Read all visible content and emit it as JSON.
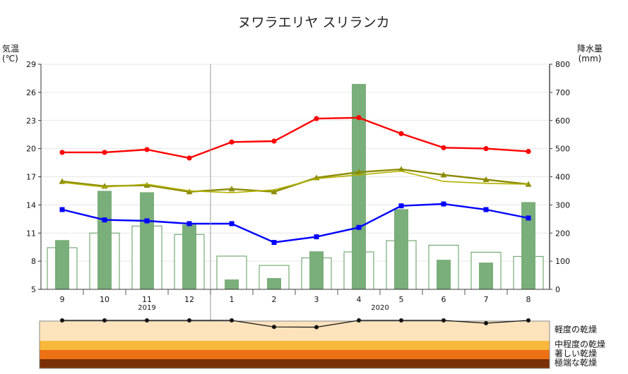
{
  "chart_data": {
    "type": "line",
    "title": "ヌワラエリヤ スリランカ",
    "left_axis": {
      "label_line1": "気温",
      "label_line2": "(℃)",
      "ticks": [
        5,
        8,
        11,
        14,
        17,
        20,
        23,
        26,
        29
      ],
      "range": [
        5,
        29
      ]
    },
    "right_axis": {
      "label_line1": "降水量",
      "label_line2": "(mm)",
      "ticks": [
        0,
        100,
        200,
        300,
        400,
        500,
        600,
        700,
        800
      ],
      "range": [
        0,
        800
      ]
    },
    "categories": [
      "9",
      "10",
      "11",
      "12",
      "1",
      "2",
      "3",
      "4",
      "5",
      "6",
      "7",
      "8"
    ],
    "year_labels": [
      {
        "text": "2019",
        "at": 2.5
      },
      {
        "text": "2020",
        "at": 8
      }
    ],
    "series": [
      {
        "values": [
          19.6,
          19.6,
          19.9,
          19.0,
          20.7,
          20.8,
          23.2,
          23.3,
          21.6,
          20.1,
          20.0,
          19.7
        ],
        "color": "#ff0000",
        "marker": "circle"
      },
      {
        "values": [
          16.5,
          16.0,
          16.1,
          15.4,
          15.7,
          15.4,
          16.9,
          17.5,
          17.8,
          17.2,
          16.7,
          16.2
        ],
        "color": "#8b8b00",
        "marker": "triangle"
      },
      {
        "values": [
          16.4,
          15.9,
          16.2,
          15.5,
          15.3,
          15.6,
          16.8,
          17.2,
          17.6,
          16.5,
          16.3,
          16.2
        ],
        "color": "#b0b000",
        "marker": "none"
      },
      {
        "values": [
          13.5,
          12.4,
          12.3,
          12.0,
          12.0,
          10.0,
          10.6,
          11.6,
          13.9,
          14.1,
          13.5,
          12.6
        ],
        "color": "#0000ff",
        "marker": "square"
      }
    ],
    "precipitation": [
      175,
      350,
      345,
      230,
      35,
      40,
      135,
      730,
      285,
      105,
      95,
      310
    ],
    "precipitation_normal": [
      148,
      200,
      225,
      195,
      118,
      85,
      112,
      133,
      173,
      157,
      132,
      117
    ],
    "bar_color": "#7aae7a",
    "drought": {
      "levels": [
        "軽度の乾燥",
        "中程度の乾燥",
        "著しい乾燥",
        "極端な乾燥"
      ],
      "colors": [
        "#fde3bc",
        "#f8b83c",
        "#ee7015",
        "#7a3005"
      ],
      "values": [
        0.0,
        0.0,
        0.0,
        0.0,
        0.0,
        0.58,
        0.6,
        0.0,
        0.0,
        0.0,
        0.25,
        0.0
      ]
    }
  }
}
